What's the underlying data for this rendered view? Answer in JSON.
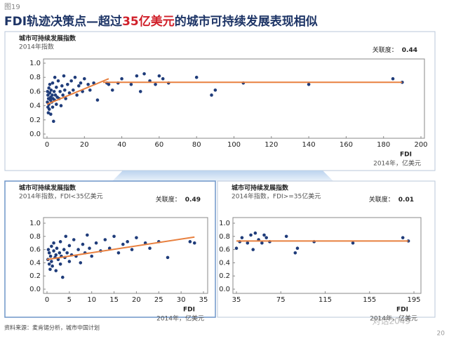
{
  "figure_label": "图19",
  "title_parts": [
    "FDI轨迹决策点—超过",
    "35亿美元",
    "的城市可持续发展表现相似"
  ],
  "source": "资料来源：麦肯锡分析，城市中国计划",
  "page_number": "20",
  "watermark": "对话2049",
  "chart_data": [
    {
      "type": "scatter",
      "title": "城市可持续发展指数",
      "subtitle": "2014年指数",
      "correlation_label": "关联度：",
      "correlation": 0.44,
      "xlabel": "FDI",
      "unit_note": "2014年，亿美元",
      "color": "#1f3c7a",
      "trend_color": "#e8803f",
      "x": [
        0.2,
        0.3,
        0.5,
        0.5,
        0.7,
        0.8,
        1,
        1,
        1.2,
        1.5,
        1.5,
        1.8,
        2,
        2,
        2.2,
        2.5,
        2.8,
        3,
        3,
        3.2,
        3.5,
        3.8,
        4,
        4.2,
        4.5,
        5,
        5,
        5.5,
        6,
        6.5,
        7,
        7.5,
        8,
        8.5,
        9,
        9.5,
        10,
        11,
        12,
        13,
        14,
        15,
        16,
        17,
        18,
        19,
        20,
        22,
        23,
        25,
        27,
        32,
        33,
        35,
        38,
        40,
        45,
        48,
        50,
        52,
        55,
        58,
        60,
        62,
        65,
        80,
        88,
        90,
        105,
        140,
        185,
        190
      ],
      "y": [
        0.45,
        0.6,
        0.38,
        0.55,
        0.3,
        0.5,
        0.42,
        0.65,
        0.35,
        0.58,
        0.7,
        0.48,
        0.52,
        0.28,
        0.62,
        0.45,
        0.55,
        0.72,
        0.38,
        0.5,
        0.18,
        0.6,
        0.48,
        0.8,
        0.55,
        0.42,
        0.66,
        0.52,
        0.75,
        0.5,
        0.6,
        0.4,
        0.68,
        0.55,
        0.82,
        0.62,
        0.5,
        0.7,
        0.58,
        0.75,
        0.62,
        0.8,
        0.55,
        0.68,
        0.72,
        0.6,
        0.78,
        0.7,
        0.62,
        0.72,
        0.48,
        0.72,
        0.7,
        0.62,
        0.72,
        0.78,
        0.7,
        0.82,
        0.6,
        0.85,
        0.75,
        0.7,
        0.82,
        0.78,
        0.72,
        0.8,
        0.55,
        0.62,
        0.72,
        0.7,
        0.78,
        0.73
      ],
      "trend_lines": [
        {
          "x": [
            0,
            33
          ],
          "y": [
            0.42,
            0.78
          ]
        },
        {
          "x": [
            30,
            190
          ],
          "y": [
            0.73,
            0.73
          ]
        }
      ],
      "xlim": [
        0,
        200
      ],
      "ylim": [
        0,
        1
      ],
      "xticks": [
        0,
        20,
        40,
        60,
        80,
        100,
        120,
        140,
        160,
        180,
        200
      ],
      "yticks": [
        {
          "value": 0,
          "label": "0.0"
        },
        0.2,
        0.4,
        0.6,
        0.8,
        {
          "value": 1,
          "label": "1.0"
        }
      ]
    },
    {
      "type": "scatter",
      "title": "城市可持续发展指数",
      "subtitle": "2014年指数，FDI<35亿美元",
      "correlation_label": "关联度：",
      "correlation": 0.49,
      "xlabel": "FDI",
      "unit_note": "2014年，亿美元",
      "color": "#1f3c7a",
      "trend_color": "#e8803f",
      "x": [
        0.2,
        0.3,
        0.5,
        0.5,
        0.7,
        0.8,
        1,
        1,
        1.2,
        1.5,
        1.5,
        1.8,
        2,
        2,
        2.2,
        2.5,
        2.8,
        3,
        3,
        3.2,
        3.5,
        3.8,
        4,
        4.2,
        4.5,
        5,
        5,
        5.5,
        6,
        6.5,
        7,
        7.5,
        8,
        8.5,
        9,
        9.5,
        10,
        11,
        12,
        13,
        14,
        15,
        16,
        17,
        18,
        19,
        20,
        22,
        23,
        25,
        27,
        32,
        33
      ],
      "y": [
        0.45,
        0.6,
        0.38,
        0.55,
        0.3,
        0.5,
        0.42,
        0.65,
        0.35,
        0.58,
        0.7,
        0.48,
        0.52,
        0.28,
        0.62,
        0.45,
        0.55,
        0.72,
        0.38,
        0.5,
        0.18,
        0.6,
        0.48,
        0.8,
        0.55,
        0.42,
        0.66,
        0.52,
        0.75,
        0.5,
        0.6,
        0.4,
        0.68,
        0.55,
        0.82,
        0.62,
        0.5,
        0.7,
        0.58,
        0.75,
        0.62,
        0.8,
        0.55,
        0.68,
        0.72,
        0.6,
        0.78,
        0.7,
        0.62,
        0.72,
        0.48,
        0.72,
        0.7
      ],
      "trend_lines": [
        {
          "x": [
            0,
            33
          ],
          "y": [
            0.45,
            0.79
          ]
        }
      ],
      "xlim": [
        0,
        35
      ],
      "ylim": [
        0,
        1
      ],
      "xticks": [
        0,
        5,
        10,
        15,
        20,
        25,
        30,
        35
      ],
      "yticks": [
        {
          "value": 0,
          "label": "0.0"
        },
        0.2,
        0.4,
        0.6,
        0.8,
        {
          "value": 1,
          "label": "1.0"
        }
      ]
    },
    {
      "type": "scatter",
      "title": "城市可持续发展指数",
      "subtitle": "2014年指数，FDI>=35亿美元",
      "correlation_label": "关联度：",
      "correlation": 0.01,
      "xlabel": "FDI",
      "unit_note": "2014年，亿美元",
      "color": "#1f3c7a",
      "trend_color": "#e8803f",
      "x": [
        35,
        38,
        40,
        45,
        48,
        50,
        52,
        55,
        58,
        60,
        62,
        65,
        80,
        88,
        90,
        105,
        140,
        185,
        190
      ],
      "y": [
        0.62,
        0.72,
        0.78,
        0.7,
        0.82,
        0.6,
        0.85,
        0.75,
        0.7,
        0.82,
        0.78,
        0.72,
        0.8,
        0.55,
        0.62,
        0.72,
        0.7,
        0.78,
        0.73
      ],
      "trend_lines": [
        {
          "x": [
            35,
            190
          ],
          "y": [
            0.73,
            0.73
          ]
        }
      ],
      "xlim": [
        35,
        195
      ],
      "ylim": [
        0,
        1
      ],
      "xticks": [
        35,
        75,
        115,
        155,
        195
      ],
      "yticks": [
        {
          "value": 0,
          "label": "0.0"
        },
        0.2,
        0.4,
        0.6,
        0.8,
        {
          "value": 1,
          "label": "1.0"
        }
      ]
    }
  ]
}
